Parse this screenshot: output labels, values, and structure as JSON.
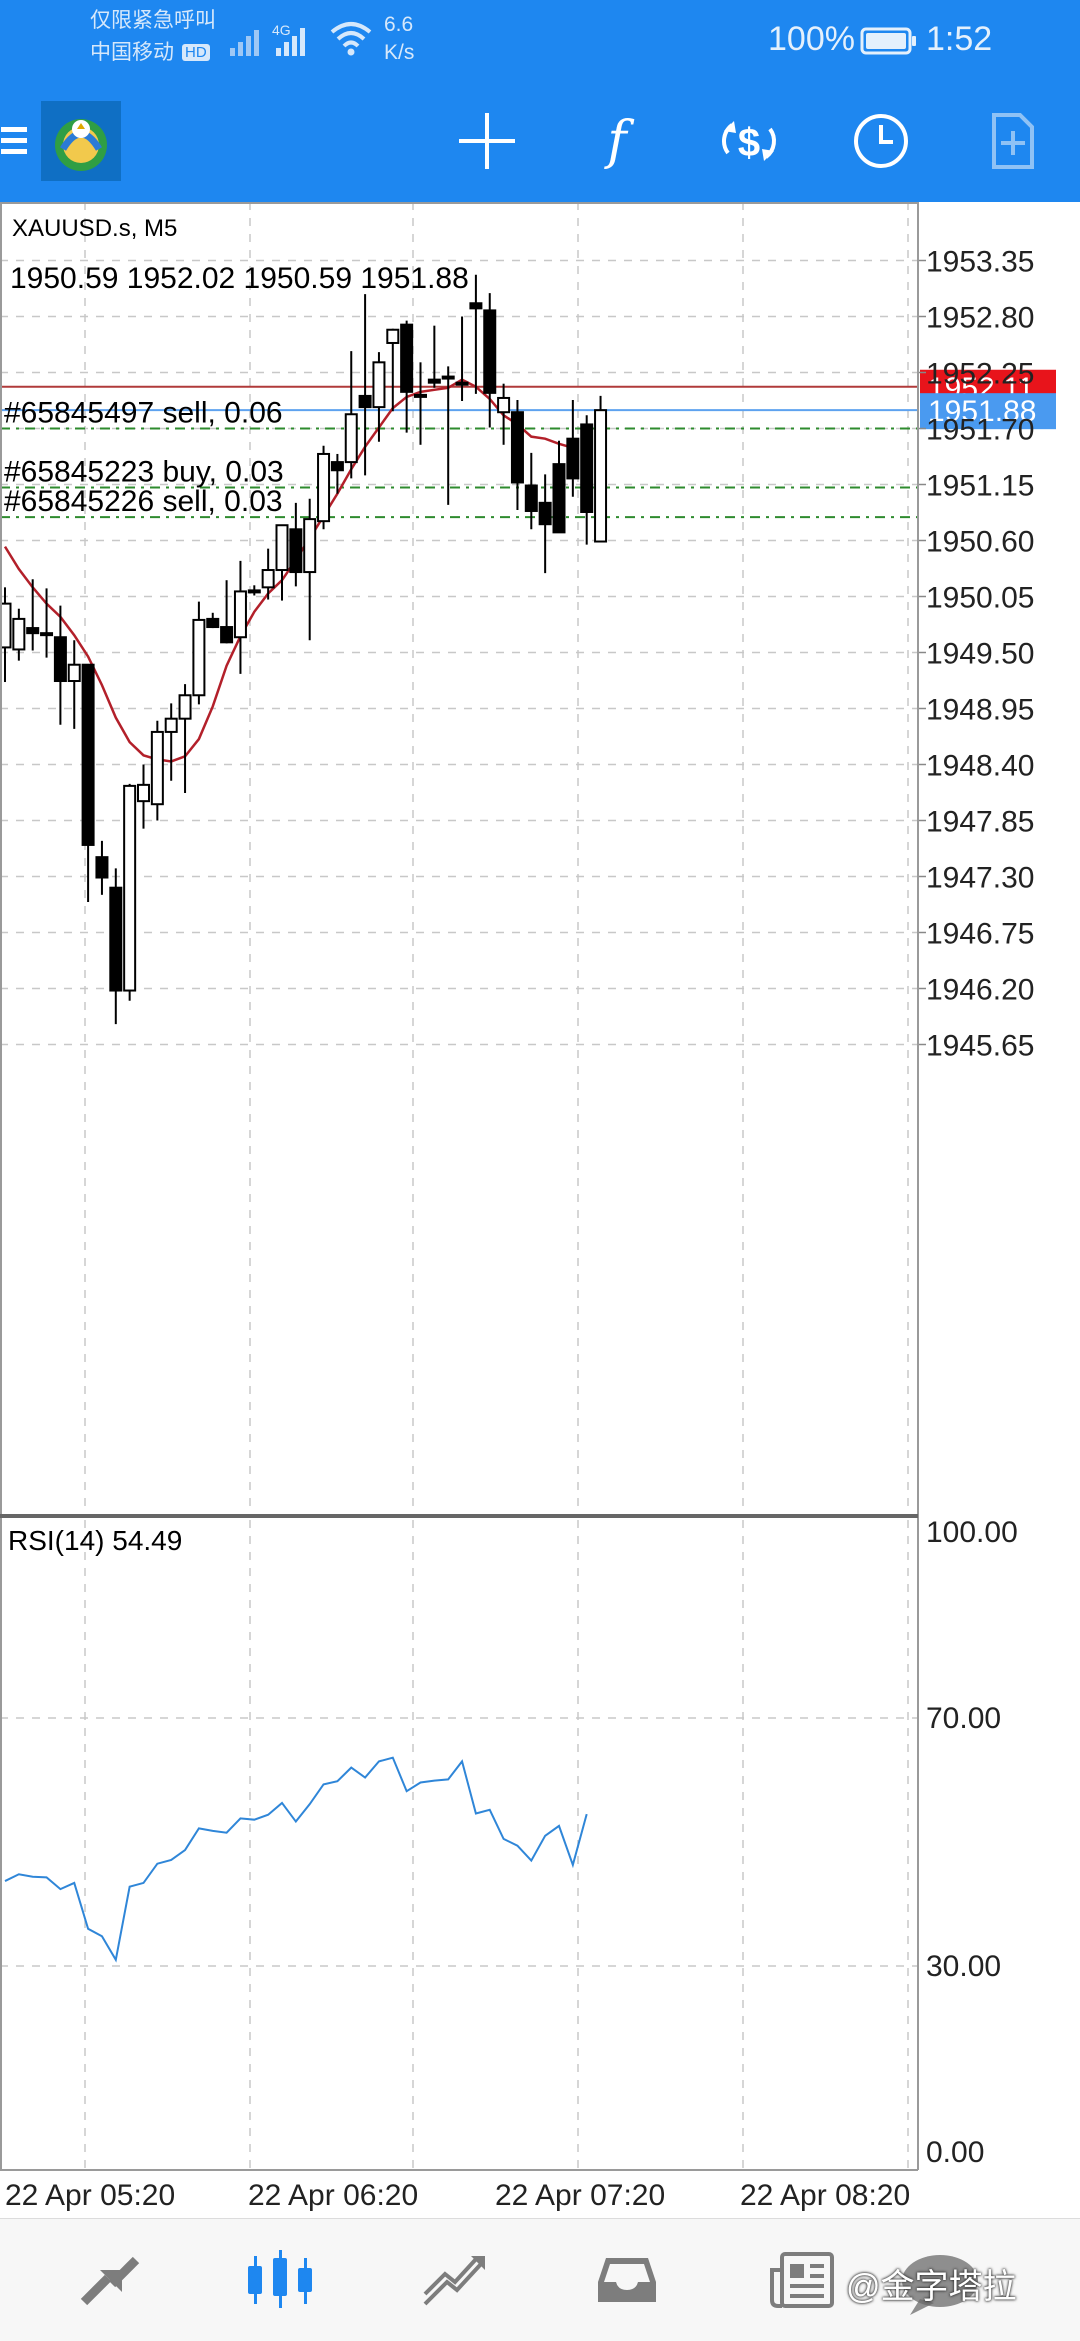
{
  "status_bar": {
    "line1": "仅限紧急呼叫",
    "line2": "中国移动",
    "hd_badge": "HD",
    "network": "4G",
    "speed_value": "6.6",
    "speed_unit": "K/s",
    "battery": "100%",
    "time": "1:52"
  },
  "toolbar": {
    "menu_icon": "hamburger-menu-icon",
    "logo_icon": "metatrader-logo-icon",
    "buttons": [
      {
        "name": "crosshair-icon"
      },
      {
        "name": "indicators-icon",
        "glyph": "f"
      },
      {
        "name": "trade-icon"
      },
      {
        "name": "timeframe-icon"
      },
      {
        "name": "templates-icon"
      }
    ]
  },
  "chart": {
    "symbol_label": "XAUUSD.s, M5",
    "ohlc_label": "1950.59 1952.02 1950.59 1951.88",
    "price_axis": [
      "1953.35",
      "1952.80",
      "1952.25",
      "1951.70",
      "1951.15",
      "1950.60",
      "1950.05",
      "1949.50",
      "1948.95",
      "1948.40",
      "1947.85",
      "1947.30",
      "1946.75",
      "1946.20",
      "1945.65"
    ],
    "ask_price": "1952.11",
    "bid_price": "1951.88",
    "orders": [
      {
        "label": "#65845497 sell, 0.06"
      },
      {
        "label": "#65845223 buy, 0.03"
      },
      {
        "label": "#65845226 sell, 0.03"
      }
    ],
    "ask_color": "#e8141b",
    "bid_color": "#4a9af0",
    "ma_color": "#b3202a",
    "rsi_label": "RSI(14) 54.49",
    "rsi_axis": [
      "100.00",
      "70.00",
      "30.00",
      "0.00"
    ],
    "time_axis": [
      "22 Apr 05:20",
      "22 Apr 06:20",
      "22 Apr 07:20",
      "22 Apr 08:20"
    ]
  },
  "chart_data": {
    "type": "candlestick",
    "symbol": "XAUUSD.s",
    "timeframe": "M5",
    "ylim": [
      1945.4,
      1953.6
    ],
    "candles": [
      {
        "o": 1949.55,
        "h": 1950.14,
        "l": 1949.21,
        "c": 1949.98
      },
      {
        "o": 1949.53,
        "h": 1949.93,
        "l": 1949.42,
        "c": 1949.83
      },
      {
        "o": 1949.74,
        "h": 1950.22,
        "l": 1949.52,
        "c": 1949.69
      },
      {
        "o": 1949.69,
        "h": 1950.13,
        "l": 1949.45,
        "c": 1949.69
      },
      {
        "o": 1949.65,
        "h": 1949.96,
        "l": 1948.79,
        "c": 1949.22
      },
      {
        "o": 1949.22,
        "h": 1949.62,
        "l": 1948.75,
        "c": 1949.38
      },
      {
        "o": 1949.38,
        "h": 1949.38,
        "l": 1947.05,
        "c": 1947.61
      },
      {
        "o": 1947.49,
        "h": 1947.65,
        "l": 1947.12,
        "c": 1947.29
      },
      {
        "o": 1947.19,
        "h": 1947.38,
        "l": 1945.85,
        "c": 1946.18
      },
      {
        "o": 1946.18,
        "h": 1948.21,
        "l": 1946.08,
        "c": 1948.19
      },
      {
        "o": 1948.04,
        "h": 1948.4,
        "l": 1947.77,
        "c": 1948.2
      },
      {
        "o": 1948.01,
        "h": 1948.83,
        "l": 1947.85,
        "c": 1948.72
      },
      {
        "o": 1948.72,
        "h": 1949.0,
        "l": 1948.24,
        "c": 1948.85
      },
      {
        "o": 1948.85,
        "h": 1949.19,
        "l": 1948.12,
        "c": 1949.08
      },
      {
        "o": 1949.08,
        "h": 1950.0,
        "l": 1948.99,
        "c": 1949.82
      },
      {
        "o": 1949.83,
        "h": 1949.89,
        "l": 1949.74,
        "c": 1949.75
      },
      {
        "o": 1949.75,
        "h": 1950.21,
        "l": 1949.59,
        "c": 1949.6
      },
      {
        "o": 1949.65,
        "h": 1950.4,
        "l": 1949.29,
        "c": 1950.1
      },
      {
        "o": 1950.1,
        "h": 1950.16,
        "l": 1950.06,
        "c": 1950.11
      },
      {
        "o": 1950.14,
        "h": 1950.52,
        "l": 1950.02,
        "c": 1950.31
      },
      {
        "o": 1950.31,
        "h": 1950.75,
        "l": 1950.01,
        "c": 1950.75
      },
      {
        "o": 1950.71,
        "h": 1950.97,
        "l": 1950.15,
        "c": 1950.29
      },
      {
        "o": 1950.29,
        "h": 1951.01,
        "l": 1949.62,
        "c": 1950.81
      },
      {
        "o": 1950.79,
        "h": 1951.53,
        "l": 1950.71,
        "c": 1951.45
      },
      {
        "o": 1951.37,
        "h": 1951.45,
        "l": 1951.06,
        "c": 1951.29
      },
      {
        "o": 1951.37,
        "h": 1952.46,
        "l": 1951.21,
        "c": 1951.84
      },
      {
        "o": 1952.02,
        "h": 1953.02,
        "l": 1951.24,
        "c": 1951.91
      },
      {
        "o": 1951.91,
        "h": 1952.45,
        "l": 1951.57,
        "c": 1952.35
      },
      {
        "o": 1952.54,
        "h": 1952.68,
        "l": 1951.87,
        "c": 1952.67
      },
      {
        "o": 1952.72,
        "h": 1952.76,
        "l": 1951.66,
        "c": 1952.06
      },
      {
        "o": 1952.03,
        "h": 1952.35,
        "l": 1951.54,
        "c": 1952.03
      },
      {
        "o": 1952.18,
        "h": 1952.71,
        "l": 1952.1,
        "c": 1952.15
      },
      {
        "o": 1952.21,
        "h": 1952.31,
        "l": 1950.95,
        "c": 1952.2
      },
      {
        "o": 1952.15,
        "h": 1952.8,
        "l": 1951.97,
        "c": 1952.15
      },
      {
        "o": 1952.93,
        "h": 1953.21,
        "l": 1952.04,
        "c": 1952.88
      },
      {
        "o": 1952.86,
        "h": 1953.03,
        "l": 1951.71,
        "c": 1952.05
      },
      {
        "o": 1951.86,
        "h": 1952.14,
        "l": 1951.54,
        "c": 1952.0
      },
      {
        "o": 1951.86,
        "h": 1951.98,
        "l": 1950.9,
        "c": 1951.17
      },
      {
        "o": 1951.14,
        "h": 1951.46,
        "l": 1950.71,
        "c": 1950.89
      },
      {
        "o": 1950.97,
        "h": 1951.25,
        "l": 1950.28,
        "c": 1950.76
      },
      {
        "o": 1951.35,
        "h": 1951.58,
        "l": 1950.68,
        "c": 1950.68
      },
      {
        "o": 1951.6,
        "h": 1951.98,
        "l": 1951.03,
        "c": 1951.21
      },
      {
        "o": 1951.74,
        "h": 1951.83,
        "l": 1950.56,
        "c": 1950.88
      },
      {
        "o": 1950.59,
        "h": 1952.02,
        "l": 1950.59,
        "c": 1951.88
      }
    ],
    "moving_average": [
      1950.54,
      1950.32,
      1950.14,
      1949.98,
      1949.85,
      1949.67,
      1949.46,
      1949.18,
      1948.86,
      1948.62,
      1948.49,
      1948.45,
      1948.43,
      1948.48,
      1948.65,
      1948.97,
      1949.37,
      1949.66,
      1949.9,
      1950.08,
      1950.21,
      1950.41,
      1950.62,
      1950.84,
      1951.06,
      1951.3,
      1951.52,
      1951.71,
      1951.9,
      1952.01,
      1952.06,
      1952.08,
      1952.1,
      1952.18,
      1952.11,
      1951.99,
      1951.83,
      1951.74,
      1951.62,
      1951.6,
      1951.55,
      1951.51
    ],
    "ask": 1952.11,
    "bid": 1951.88,
    "order_levels": [
      1951.7,
      1951.12,
      1950.83
    ],
    "rsi": {
      "period": 14,
      "ylim": [
        0,
        100
      ],
      "levels": [
        70,
        30
      ],
      "values": [
        43.7,
        44.8,
        44.4,
        44.3,
        42.4,
        43.4,
        36.0,
        34.8,
        31.0,
        42.8,
        43.4,
        46.5,
        47.1,
        48.7,
        52.2,
        51.8,
        51.5,
        53.8,
        53.6,
        54.4,
        56.3,
        53.3,
        56.1,
        59.3,
        59.8,
        62.0,
        60.4,
        63.0,
        63.6,
        58.2,
        59.6,
        59.9,
        60.1,
        63.0,
        54.6,
        55.2,
        50.5,
        49.4,
        47.0,
        51.0,
        52.6,
        46.3,
        54.5
      ]
    },
    "time_labels": [
      "22 Apr 05:20",
      "22 Apr 06:20",
      "22 Apr 07:20",
      "22 Apr 08:20"
    ]
  },
  "bottom_nav": {
    "items": [
      {
        "name": "quotes-tab-icon",
        "active": false
      },
      {
        "name": "chart-tab-icon",
        "active": true
      },
      {
        "name": "trade-tab-icon",
        "active": false
      },
      {
        "name": "history-tab-icon",
        "active": false
      },
      {
        "name": "news-tab-icon",
        "active": false
      }
    ],
    "accent": "#1e87f0",
    "watermark": "@金字塔拉"
  }
}
